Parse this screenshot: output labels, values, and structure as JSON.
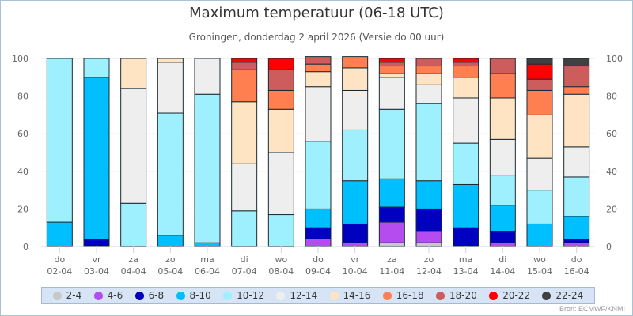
{
  "chart_data": {
    "type": "bar",
    "stacked": true,
    "title": "Maximum temperatuur (06-18 UTC)",
    "subtitle": "Groningen, donderdag 2 april 2026 (Versie do 00 uur)",
    "source": "Bron: ECMWF/KNMI",
    "xlabel": "",
    "ylabel": "",
    "ylim": [
      0,
      100
    ],
    "yticks": [
      0,
      20,
      40,
      60,
      80,
      100
    ],
    "grid": true,
    "legend_position": "bottom",
    "categories": [
      {
        "day": "do",
        "date": "02-04"
      },
      {
        "day": "vr",
        "date": "03-04"
      },
      {
        "day": "za",
        "date": "04-04"
      },
      {
        "day": "zo",
        "date": "05-04"
      },
      {
        "day": "ma",
        "date": "06-04"
      },
      {
        "day": "di",
        "date": "07-04"
      },
      {
        "day": "wo",
        "date": "08-04"
      },
      {
        "day": "do",
        "date": "09-04"
      },
      {
        "day": "vr",
        "date": "10-04"
      },
      {
        "day": "za",
        "date": "11-04"
      },
      {
        "day": "zo",
        "date": "12-04"
      },
      {
        "day": "ma",
        "date": "13-04"
      },
      {
        "day": "di",
        "date": "14-04"
      },
      {
        "day": "wo",
        "date": "15-04"
      },
      {
        "day": "do",
        "date": "16-04"
      }
    ],
    "series": [
      {
        "name": "2-4",
        "color": "#c8c8c8",
        "values": [
          0,
          0,
          0,
          0,
          0,
          0,
          0,
          0,
          0,
          2,
          2,
          0,
          0,
          0,
          0
        ]
      },
      {
        "name": "4-6",
        "color": "#b44cf0",
        "values": [
          0,
          0,
          0,
          0,
          0,
          0,
          0,
          4,
          2,
          11,
          6,
          0,
          2,
          0,
          2
        ]
      },
      {
        "name": "6-8",
        "color": "#0000c0",
        "values": [
          0,
          4,
          0,
          0,
          0,
          0,
          0,
          6,
          10,
          8,
          12,
          10,
          6,
          0,
          2
        ]
      },
      {
        "name": "8-10",
        "color": "#00bfff",
        "values": [
          13,
          86,
          0,
          6,
          2,
          0,
          0,
          10,
          23,
          15,
          15,
          23,
          14,
          12,
          12
        ]
      },
      {
        "name": "10-12",
        "color": "#9ef0ff",
        "values": [
          87,
          10,
          23,
          65,
          79,
          19,
          17,
          36,
          27,
          37,
          41,
          22,
          16,
          18,
          21
        ]
      },
      {
        "name": "12-14",
        "color": "#eeeeee",
        "values": [
          0,
          0,
          61,
          27,
          19,
          25,
          33,
          29,
          21,
          17,
          10,
          24,
          19,
          17,
          16
        ]
      },
      {
        "name": "14-16",
        "color": "#ffe4c4",
        "values": [
          0,
          0,
          16,
          2,
          0,
          33,
          23,
          8,
          12,
          2,
          6,
          11,
          22,
          23,
          28
        ]
      },
      {
        "name": "16-18",
        "color": "#ff7f50",
        "values": [
          0,
          0,
          0,
          0,
          0,
          17,
          10,
          4,
          6,
          4,
          4,
          6,
          13,
          13,
          4
        ]
      },
      {
        "name": "18-20",
        "color": "#cd5c5c",
        "values": [
          0,
          0,
          0,
          0,
          0,
          4,
          11,
          4,
          0,
          2,
          4,
          2,
          8,
          6,
          11
        ]
      },
      {
        "name": "20-22",
        "color": "#ff0000",
        "values": [
          0,
          0,
          0,
          0,
          0,
          2,
          6,
          0,
          0,
          2,
          0,
          2,
          0,
          8,
          0
        ]
      },
      {
        "name": "22-24",
        "color": "#404040",
        "values": [
          0,
          0,
          0,
          0,
          0,
          0,
          0,
          0,
          0,
          0,
          0,
          0,
          0,
          3,
          4
        ]
      }
    ]
  }
}
